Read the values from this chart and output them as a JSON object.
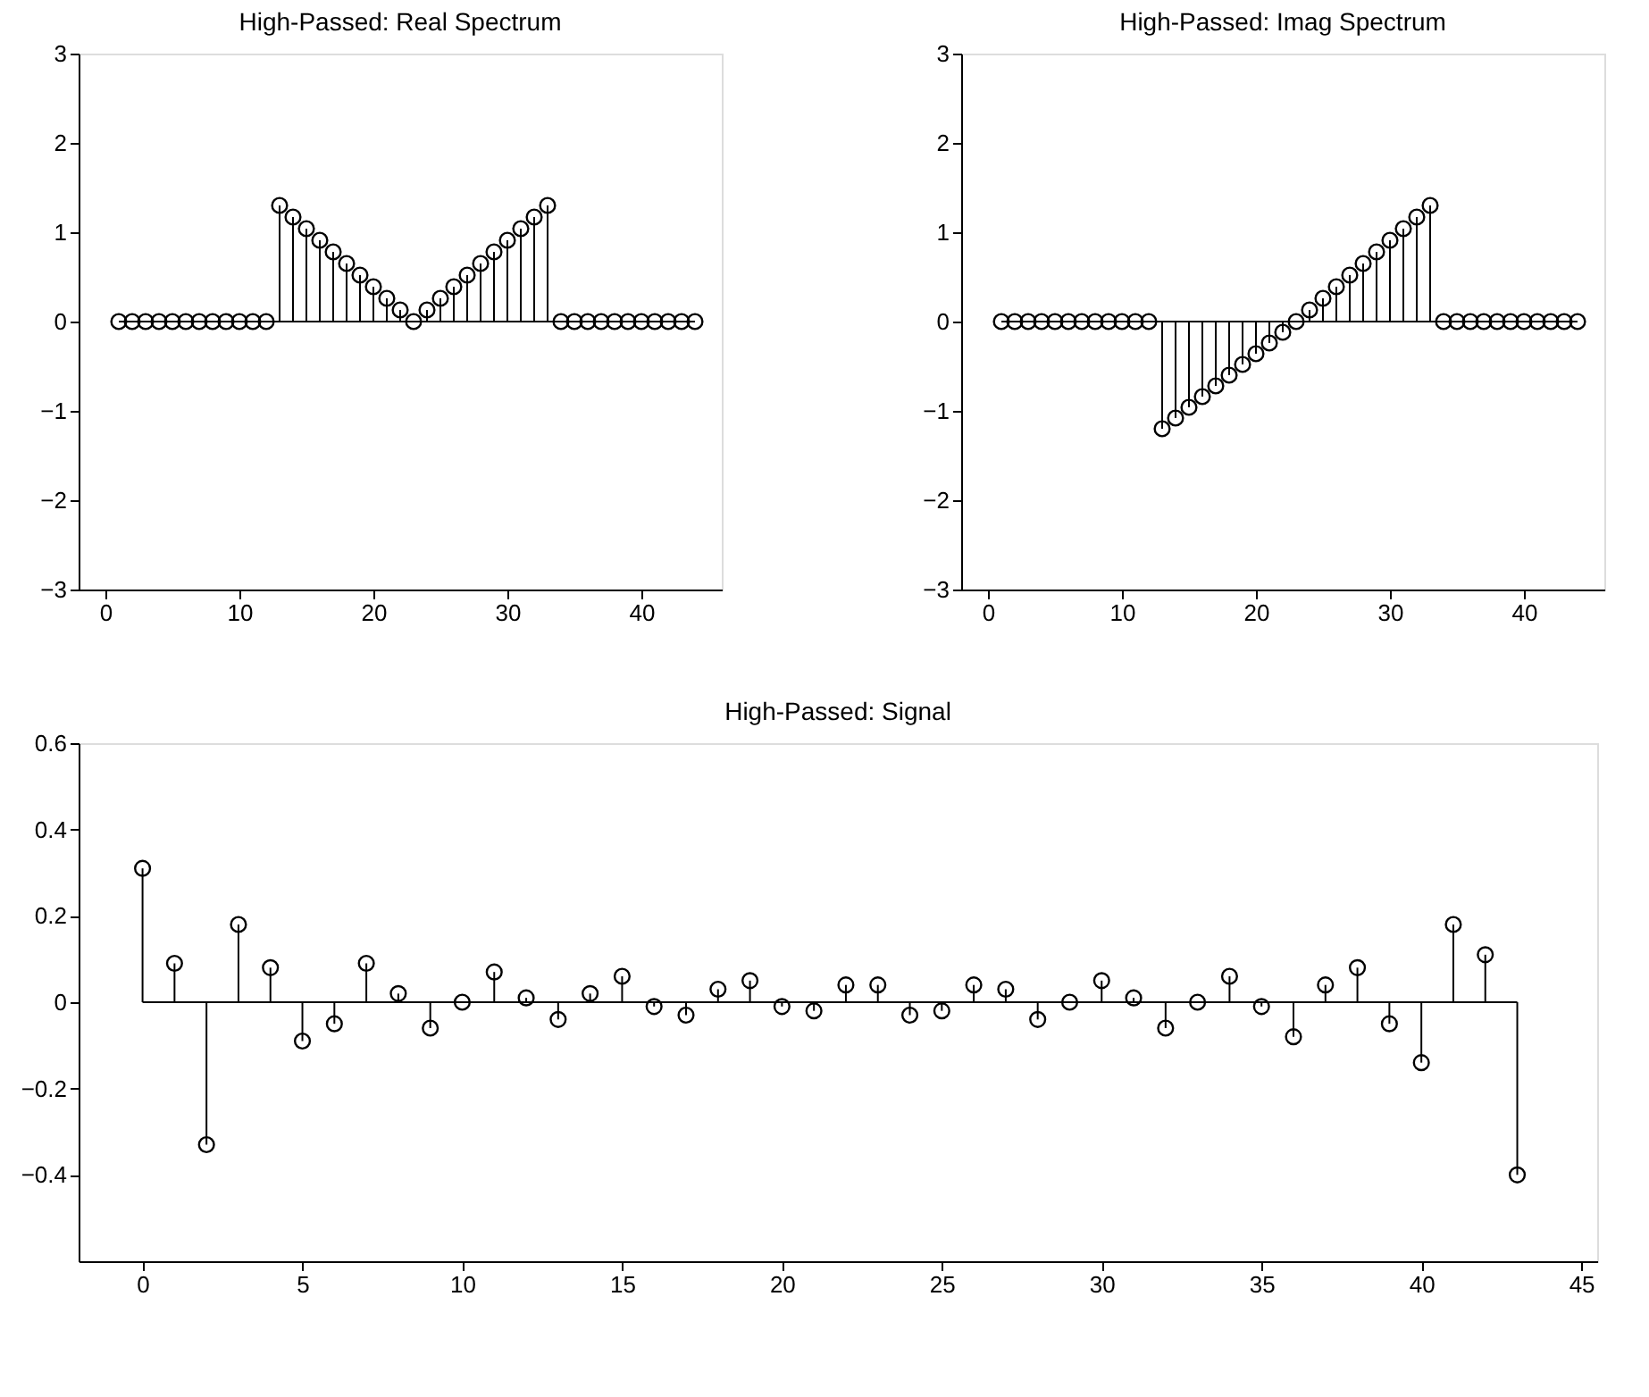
{
  "chart_data": [
    {
      "type": "lollipop",
      "title": "High-Passed: Real Spectrum",
      "x": [
        1,
        2,
        3,
        4,
        5,
        6,
        7,
        8,
        9,
        10,
        11,
        12,
        13,
        14,
        15,
        16,
        17,
        18,
        19,
        20,
        21,
        22,
        23,
        24,
        25,
        26,
        27,
        28,
        29,
        30,
        31,
        32,
        33,
        34,
        35,
        36,
        37,
        38,
        39,
        40,
        41,
        42,
        43,
        44
      ],
      "series": [
        {
          "color": "#000000",
          "values": [
            0,
            0,
            0,
            0,
            0,
            0,
            0,
            0,
            0,
            0,
            0,
            0,
            1.3,
            1.17,
            1.04,
            0.91,
            0.78,
            0.65,
            0.52,
            0.39,
            0.26,
            0.13,
            0,
            0.13,
            0.26,
            0.39,
            0.52,
            0.65,
            0.78,
            0.91,
            1.04,
            1.17,
            1.3,
            0,
            0,
            0,
            0,
            0,
            0,
            0,
            0,
            0,
            0,
            0
          ]
        }
      ],
      "xlim": [
        -2,
        46
      ],
      "xticks": [
        0,
        10,
        20,
        30,
        40
      ],
      "ylim": [
        -3,
        3
      ],
      "yticks": [
        -3,
        -2,
        -1,
        0,
        1,
        2,
        3
      ],
      "marker": "circle"
    },
    {
      "type": "lollipop",
      "title": "High-Passed: Imag Spectrum",
      "x": [
        1,
        2,
        3,
        4,
        5,
        6,
        7,
        8,
        9,
        10,
        11,
        12,
        13,
        14,
        15,
        16,
        17,
        18,
        19,
        20,
        21,
        22,
        23,
        24,
        25,
        26,
        27,
        28,
        29,
        30,
        31,
        32,
        33,
        34,
        35,
        36,
        37,
        38,
        39,
        40,
        41,
        42,
        43,
        44
      ],
      "series": [
        {
          "color": "#000000",
          "values": [
            0,
            0,
            0,
            0,
            0,
            0,
            0,
            0,
            0,
            0,
            0,
            0,
            -1.2,
            -1.08,
            -0.96,
            -0.84,
            -0.72,
            -0.6,
            -0.48,
            -0.36,
            -0.24,
            -0.12,
            0,
            0.13,
            0.26,
            0.39,
            0.52,
            0.65,
            0.78,
            0.91,
            1.04,
            1.17,
            1.3,
            0,
            0,
            0,
            0,
            0,
            0,
            0,
            0,
            0,
            0,
            0
          ]
        }
      ],
      "xlim": [
        -2,
        46
      ],
      "xticks": [
        0,
        10,
        20,
        30,
        40
      ],
      "ylim": [
        -3,
        3
      ],
      "yticks": [
        -3,
        -2,
        -1,
        0,
        1,
        2,
        3
      ],
      "marker": "circle"
    },
    {
      "type": "lollipop",
      "title": "High-Passed: Signal",
      "x": [
        0,
        1,
        2,
        3,
        4,
        5,
        6,
        7,
        8,
        9,
        10,
        11,
        12,
        13,
        14,
        15,
        16,
        17,
        18,
        19,
        20,
        21,
        22,
        23,
        24,
        25,
        26,
        27,
        28,
        29,
        30,
        31,
        32,
        33,
        34,
        35,
        36,
        37,
        38,
        39,
        40,
        41,
        42,
        43
      ],
      "series": [
        {
          "color": "#000000",
          "values": [
            0.31,
            0.09,
            -0.33,
            0.18,
            0.08,
            -0.09,
            -0.05,
            0.09,
            0.02,
            -0.06,
            0,
            0.07,
            0.01,
            -0.04,
            0.02,
            0.06,
            -0.01,
            -0.03,
            0.03,
            0.05,
            -0.01,
            -0.02,
            0.04,
            0.04,
            -0.03,
            -0.02,
            0.04,
            0.03,
            -0.04,
            0,
            0.05,
            0.01,
            -0.06,
            0,
            0.06,
            -0.01,
            -0.08,
            0.04,
            0.08,
            -0.05,
            -0.14,
            0.18,
            0.11,
            -0.4
          ]
        }
      ],
      "xlim": [
        -2,
        45.5
      ],
      "xticks": [
        0,
        5,
        10,
        15,
        20,
        25,
        30,
        35,
        40,
        45
      ],
      "ylim": [
        -0.6,
        0.6
      ],
      "yticks": [
        -0.4,
        -0.2,
        0,
        0.2,
        0.4,
        0.6
      ],
      "marker": "circle"
    }
  ]
}
